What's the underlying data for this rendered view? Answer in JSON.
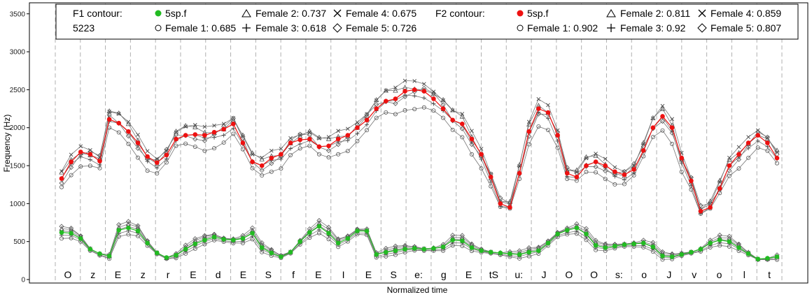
{
  "chart_data": {
    "type": "line",
    "xlabel": "Normalized time",
    "ylabel": "Frequency (Hz)",
    "ylim": [
      0,
      3600
    ],
    "yticks": [
      0,
      500,
      1000,
      1500,
      2000,
      2500,
      3000,
      3500
    ],
    "grid": "vertical dashed segment boundaries",
    "legend_placement": "top",
    "segments": [
      "O",
      "z",
      "E",
      "z",
      "r",
      "E",
      "d",
      "E",
      "S",
      "f",
      "E",
      "I",
      "E",
      "S",
      "e:",
      "g",
      "E",
      "tS",
      "u:",
      "J",
      "O",
      "O",
      "s:",
      "o",
      "J",
      "v",
      "o",
      "l",
      "t"
    ],
    "legend": {
      "f1": {
        "heading": "F1 contour:",
        "subheading": "5223",
        "entries": [
          {
            "label": "5sp.f",
            "marker": "filled-dot-green"
          },
          {
            "label": "Female 1: 0.685",
            "marker": "circle"
          },
          {
            "label": "Female 2: 0.737",
            "marker": "triangle"
          },
          {
            "label": "Female 3: 0.618",
            "marker": "plus"
          },
          {
            "label": "Female 4: 0.675",
            "marker": "cross"
          },
          {
            "label": "Female 5: 0.726",
            "marker": "diamond"
          }
        ]
      },
      "f2": {
        "heading": "F2 contour:",
        "entries": [
          {
            "label": "5sp.f",
            "marker": "filled-dot-red"
          },
          {
            "label": "Female 1: 0.902",
            "marker": "circle"
          },
          {
            "label": "Female 2: 0.811",
            "marker": "triangle"
          },
          {
            "label": "Female 3: 0.92",
            "marker": "plus"
          },
          {
            "label": "Female 4: 0.859",
            "marker": "cross"
          },
          {
            "label": "Female 5: 0.807",
            "marker": "diamond"
          }
        ]
      }
    },
    "colors": {
      "f1_mean": "#22bb22",
      "f2_mean": "#ee1111",
      "individual": "#555555"
    },
    "f2_mean_segments": [
      [
        1330,
        1550,
        1680,
        1650,
        1560
      ],
      [
        2110,
        2060,
        1950,
        1800,
        1620,
        1540,
        1640
      ],
      [
        1850,
        1900,
        1910,
        1900,
        1940
      ],
      [
        1980,
        2050
      ],
      [
        1800,
        1550,
        1500,
        1600,
        1650
      ],
      [
        1800,
        1840,
        1850
      ],
      [
        1750,
        1760,
        1850
      ],
      [
        1900,
        2000,
        2100
      ],
      [
        2250,
        2350,
        2380
      ],
      [
        2480,
        2500,
        2480
      ],
      [
        2380,
        2250,
        2100
      ],
      [
        2050,
        1850,
        1650
      ],
      [
        1350,
        1000,
        950
      ],
      [
        1400,
        1950,
        2250
      ],
      [
        2200,
        1900,
        1400
      ],
      [
        1350,
        1500,
        1550
      ],
      [
        1500,
        1420,
        1380
      ],
      [
        1450,
        1700,
        2000
      ],
      [
        2150,
        2000,
        1600
      ],
      [
        1300,
        900,
        950
      ],
      [
        1200,
        1500,
        1650,
        1800
      ],
      [
        1900,
        1800,
        1600
      ]
    ],
    "f1_mean": [
      620,
      610,
      540,
      400,
      340,
      310,
      650,
      680,
      640,
      480,
      350,
      290,
      320,
      400,
      470,
      520,
      560,
      530,
      520,
      540,
      610,
      420,
      350,
      300,
      360,
      500,
      620,
      700,
      610,
      480,
      540,
      640,
      640,
      330,
      360,
      380,
      400,
      410,
      400,
      410,
      430,
      520,
      510,
      420,
      380,
      360,
      350,
      340,
      330,
      360,
      380,
      480,
      600,
      650,
      680,
      600,
      450,
      420,
      440,
      460,
      470,
      480,
      430,
      310,
      300,
      330,
      360,
      400,
      480,
      520,
      500,
      420,
      340,
      270,
      280,
      300
    ]
  }
}
